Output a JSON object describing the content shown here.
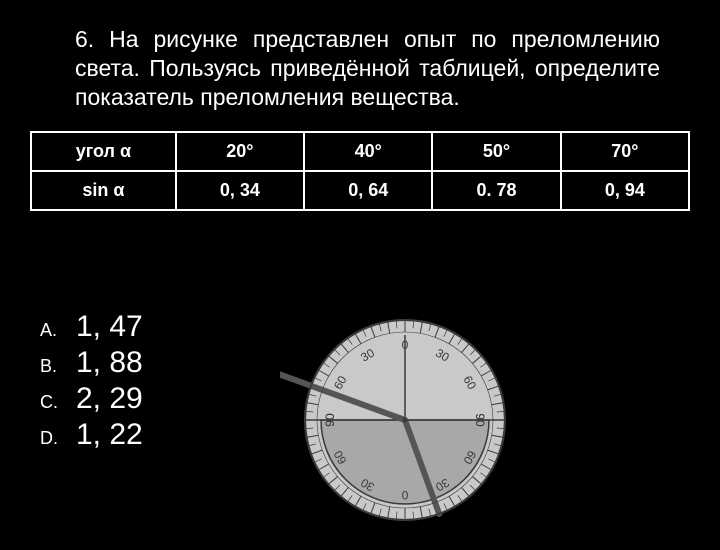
{
  "question": {
    "number": "6.",
    "text": "На рисунке представлен опыт по преломлению света. Пользуясь приведённой таблицей, определите показатель преломления вещества."
  },
  "table": {
    "row1_label": "угол α",
    "row1_values": [
      "20°",
      "40°",
      "50°",
      "70°"
    ],
    "row2_label": "sin α",
    "row2_values": [
      "0, 34",
      "0, 64",
      "0. 78",
      "0, 94"
    ]
  },
  "answers": [
    {
      "letter": "A.",
      "value": "1, 47"
    },
    {
      "letter": "B.",
      "value": "1, 88"
    },
    {
      "letter": "C.",
      "value": "2, 29"
    },
    {
      "letter": "D.",
      "value": "1, 22"
    }
  ],
  "diagram": {
    "background_circle": "#c9c9c9",
    "semicircle_fill": "#a8a8a8",
    "stroke": "#3a3a3a",
    "ray_color": "#555555",
    "ray_width": 6,
    "tick_labels_top": [
      "90",
      "60",
      "30",
      "0",
      "30",
      "60",
      "90"
    ],
    "tick_labels_top_angles_deg": [
      -90,
      -60,
      -30,
      0,
      30,
      60,
      90
    ],
    "incident_angle_deg": 70,
    "refracted_angle_deg": 20,
    "radius": 100,
    "tick_inner": 88,
    "tick_outer": 100,
    "label_radius": 74,
    "font_size_label": 12
  },
  "colors": {
    "bg": "#000000",
    "fg": "#ffffff"
  }
}
